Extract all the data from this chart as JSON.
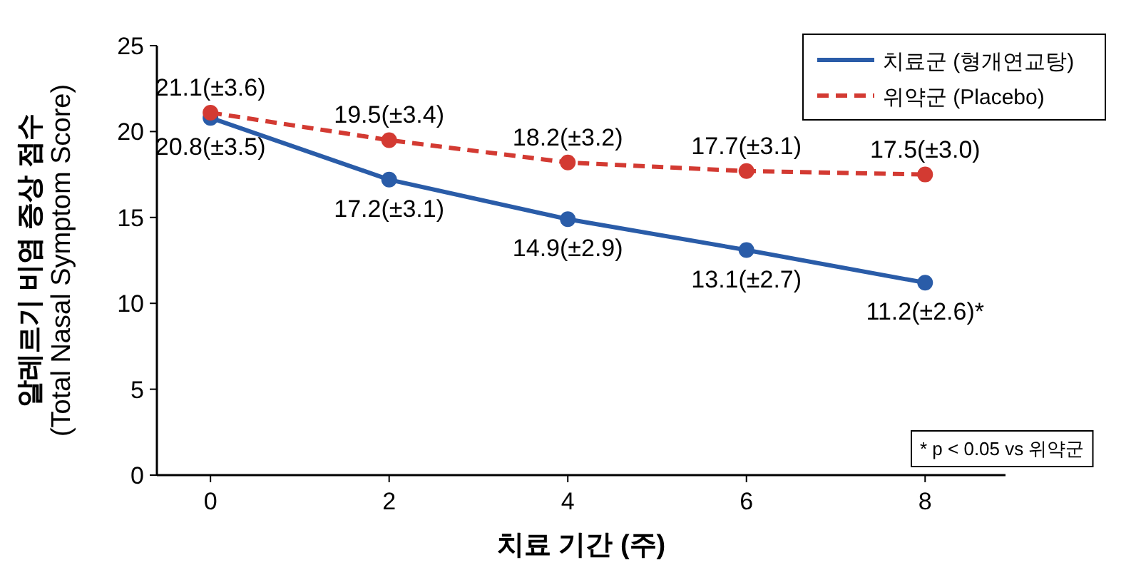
{
  "chart_data": {
    "type": "line",
    "xlabel": "치료 기간 (주)",
    "ylabel": "알레르기 비염 증상 점수\n(Total Nasal Symptom Score)",
    "x": [
      0,
      2,
      4,
      6,
      8
    ],
    "xlim": [
      -0.6,
      8.9
    ],
    "xticks": [
      0,
      2,
      4,
      6,
      8
    ],
    "ylim": [
      0,
      25
    ],
    "yticks": [
      0,
      5,
      10,
      15,
      20,
      25
    ],
    "series": [
      {
        "name": "치료군 (형개연교탕)",
        "color": "#2a5ca8",
        "line_style": "solid",
        "marker": "circle",
        "values": [
          20.8,
          17.2,
          14.9,
          13.1,
          11.2
        ],
        "value_labels": [
          "20.8(±3.5)",
          "17.2(±3.1)",
          "14.9(±2.9)",
          "13.1(±2.7)",
          "11.2(±2.6)*"
        ]
      },
      {
        "name": "위약군 (Placebo)",
        "color": "#d33a32",
        "line_style": "dashed",
        "marker": "circle",
        "values": [
          21.1,
          19.5,
          18.2,
          17.7,
          17.5
        ],
        "value_labels": [
          "21.1(±3.6)",
          "19.5(±3.4)",
          "18.2(±3.2)",
          "17.7(±3.1)",
          "17.5(±3.0)"
        ]
      }
    ],
    "legend": "top right",
    "grid": false,
    "annotations": [
      "* p < 0.05 vs 위약군"
    ]
  }
}
